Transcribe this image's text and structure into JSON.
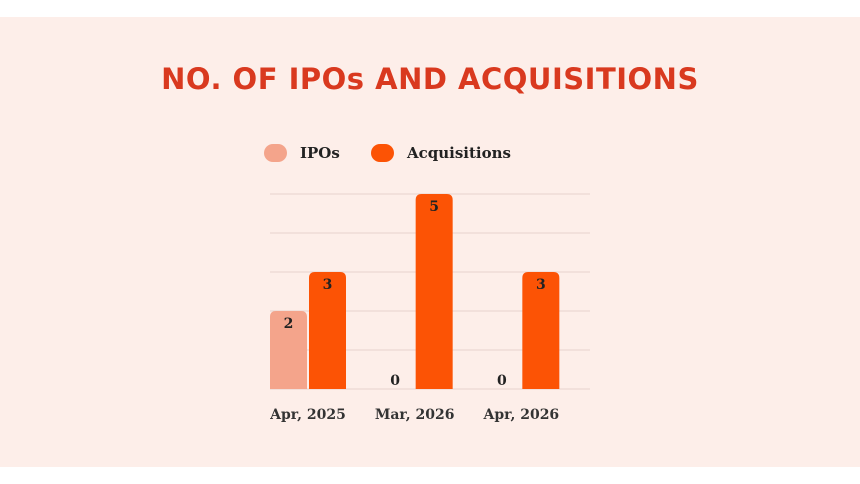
{
  "colors": {
    "background": "#fdeee9",
    "title": "#d9391f",
    "ipos": "#f4a48b",
    "acquisitions": "#fc5305",
    "grid": "#e6d3cd"
  },
  "chart_data": {
    "type": "bar",
    "title": "NO. OF IPOs AND ACQUISITIONS",
    "xlabel": "",
    "ylabel": "",
    "categories": [
      "Apr, 2025",
      "Mar, 2026",
      "Apr, 2026"
    ],
    "series": [
      {
        "name": "IPOs",
        "values": [
          2,
          0,
          0
        ],
        "color": "#f4a48b"
      },
      {
        "name": "Acquisitions",
        "values": [
          3,
          5,
          3
        ],
        "color": "#fc5305"
      }
    ],
    "ylim": [
      0,
      5
    ],
    "grid": true,
    "legend": "top"
  }
}
